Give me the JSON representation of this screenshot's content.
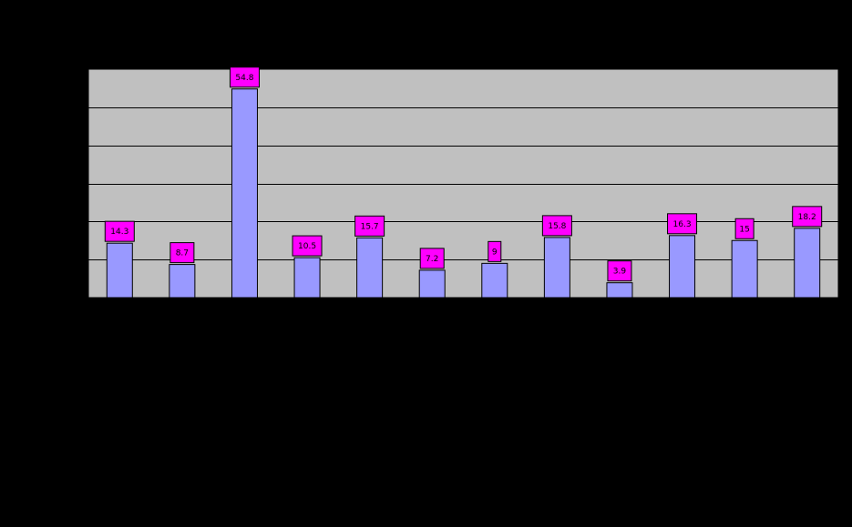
{
  "chart_data": {
    "type": "bar",
    "categories": [
      "",
      "",
      "",
      "",
      "",
      "",
      "",
      "",
      "",
      "",
      "",
      ""
    ],
    "values": [
      14.3,
      8.7,
      54.8,
      10.5,
      15.7,
      7.2,
      9,
      15.8,
      3.9,
      16.3,
      15,
      18.2
    ],
    "data_labels": [
      "14.3",
      "8.7",
      "54.8",
      "10.5",
      "15.7",
      "7.2",
      "9",
      "15.8",
      "3.9",
      "16.3",
      "15",
      "18.2"
    ],
    "ylim": [
      0,
      60
    ],
    "y_grid_step": 10,
    "grid": true,
    "legend": "none",
    "colors": {
      "background": "#000000",
      "plot_area": "#c0c0c0",
      "bar_fill": "#9999ff",
      "bar_stroke": "#000000",
      "label_fill": "#ff00ff",
      "gridline": "#000000"
    }
  }
}
